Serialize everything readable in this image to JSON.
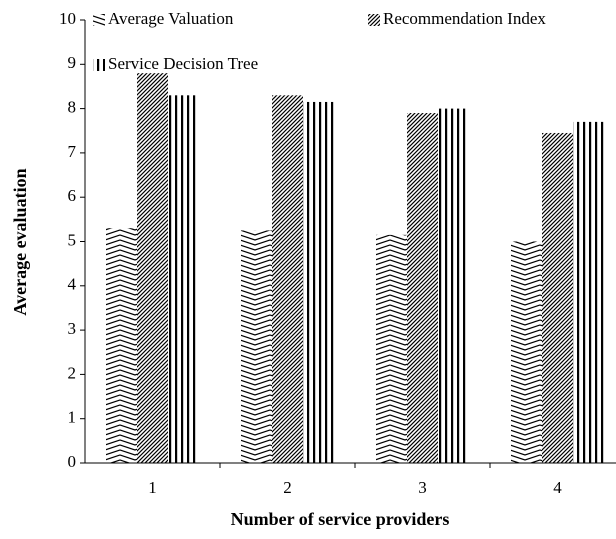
{
  "chart_data": {
    "type": "bar",
    "xlabel": "Number of service providers",
    "ylabel": "Average evaluation",
    "categories": [
      "1",
      "2",
      "3",
      "4"
    ],
    "series": [
      {
        "name": "Average Valuation",
        "color": "#000000",
        "hatch": "chevron",
        "values": [
          5.3,
          5.25,
          5.15,
          5.0
        ]
      },
      {
        "name": "Recommendation Index",
        "color": "#000000",
        "hatch": "slash",
        "values": [
          8.8,
          8.3,
          7.9,
          7.45
        ]
      },
      {
        "name": "Service Decision Tree",
        "color": "#000000",
        "hatch": "vertical",
        "values": [
          8.3,
          8.15,
          8.0,
          7.7
        ]
      }
    ],
    "ylim": [
      0,
      10
    ],
    "yticks": [
      0,
      1,
      2,
      3,
      4,
      5,
      6,
      7,
      8,
      9,
      10
    ],
    "grid": false,
    "legend": "top"
  }
}
